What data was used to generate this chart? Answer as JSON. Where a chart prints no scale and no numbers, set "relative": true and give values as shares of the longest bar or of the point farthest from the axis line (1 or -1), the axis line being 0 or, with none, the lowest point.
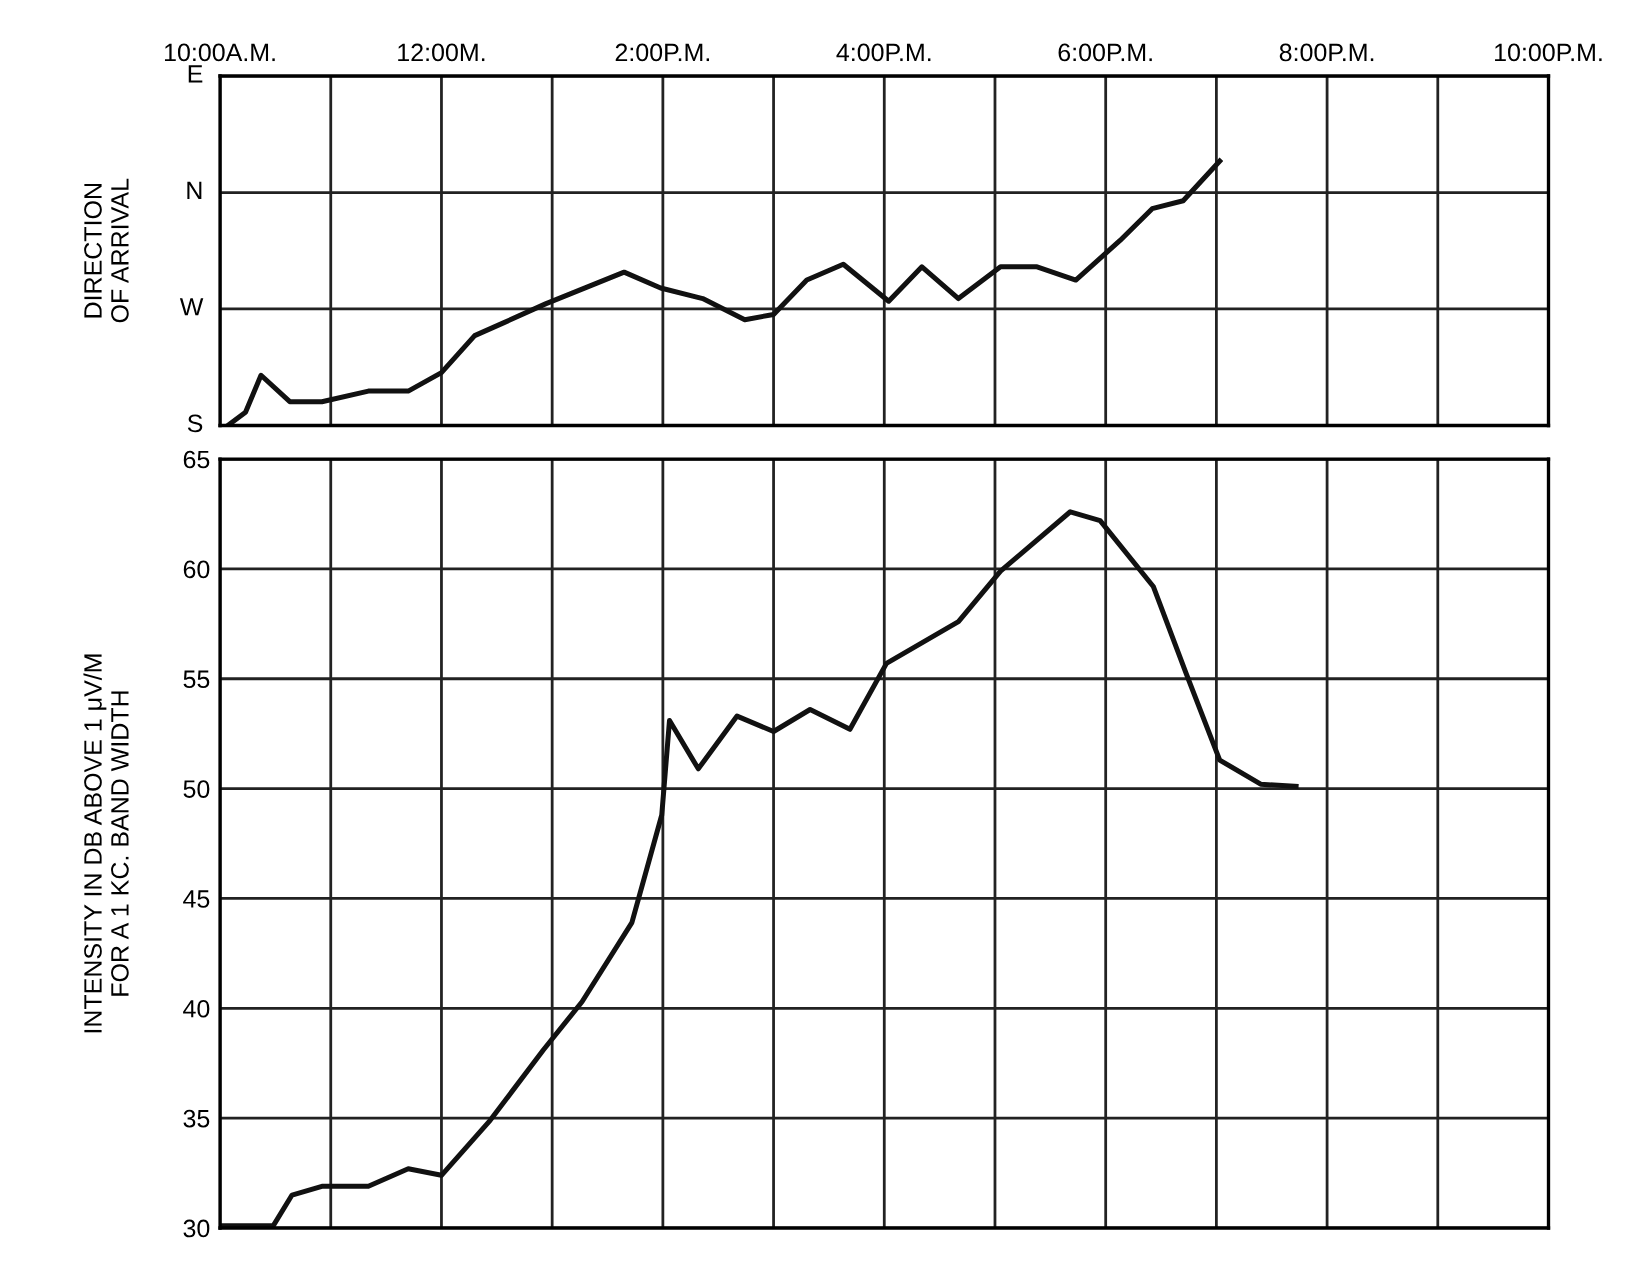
{
  "chart_data": [
    {
      "type": "line",
      "ylabel": "DIRECTION\nOF ARRIVAL",
      "xlim": [
        10,
        22
      ],
      "relative": true,
      "ref_lines": [
        {
          "axis": "y",
          "value": 0,
          "label": "S"
        },
        {
          "axis": "y",
          "value": 0.441,
          "label": "W"
        },
        {
          "axis": "y",
          "value": 0.881,
          "label": "N"
        },
        {
          "axis": "y",
          "value": 1.322,
          "label": "E"
        }
      ],
      "xticks": [
        {
          "value": 10,
          "label": "10:00A.M."
        },
        {
          "value": 11,
          "label": null
        },
        {
          "value": 12,
          "label": "12:00M."
        },
        {
          "value": 13,
          "label": null
        },
        {
          "value": 14,
          "label": "2:00P.M."
        },
        {
          "value": 15,
          "label": null
        },
        {
          "value": 16,
          "label": "4:00P.M."
        },
        {
          "value": 17,
          "label": null
        },
        {
          "value": 18,
          "label": "6:00P.M."
        },
        {
          "value": 19,
          "label": null
        },
        {
          "value": 20,
          "label": "8:00P.M."
        },
        {
          "value": 21,
          "label": null
        },
        {
          "value": 22,
          "label": "10:00P.M."
        }
      ],
      "grid": true,
      "line_style": "solid",
      "series": [
        {
          "color": "#111111",
          "x": [
            10.07,
            10.23,
            10.37,
            10.63,
            10.92,
            11.34,
            11.7,
            12.0,
            12.3,
            12.57,
            12.94,
            13.65,
            13.98,
            14.36,
            14.74,
            15.0,
            15.3,
            15.63,
            16.04,
            16.34,
            16.67,
            17.05,
            17.38,
            17.73,
            18.13,
            18.42,
            18.7,
            19.03
          ],
          "values": [
            0,
            0.05,
            0.19,
            0.09,
            0.09,
            0.13,
            0.13,
            0.2,
            0.34,
            0.39,
            0.46,
            0.58,
            0.52,
            0.48,
            0.4,
            0.42,
            0.55,
            0.61,
            0.47,
            0.6,
            0.48,
            0.6,
            0.6,
            0.55,
            0.7,
            0.82,
            0.85,
            1
          ]
        }
      ]
    },
    {
      "type": "line",
      "ylabel": "INTENSITY IN DB ABOVE 1 μV/M\nFOR A 1 KC. BAND WIDTH",
      "xlim": [
        10,
        22
      ],
      "ylim": [
        30,
        65
      ],
      "xticks": [
        10,
        11,
        12,
        13,
        14,
        15,
        16,
        17,
        18,
        19,
        20,
        21,
        22
      ],
      "yticks": [
        30,
        35,
        40,
        45,
        50,
        55,
        60,
        65
      ],
      "tick_labels": "y",
      "grid": true,
      "line_style": "solid",
      "series": [
        {
          "color": "#111111",
          "x": [
            10.0,
            10.48,
            10.65,
            10.92,
            11.34,
            11.7,
            12.0,
            12.44,
            12.92,
            13.27,
            13.72,
            13.99,
            14.06,
            14.32,
            14.67,
            15.0,
            15.33,
            15.69,
            16.02,
            16.67,
            17.05,
            17.68,
            17.95,
            18.43,
            18.73,
            19.03,
            19.4,
            19.72
          ],
          "values": [
            30.1,
            30.1,
            31.5,
            31.9,
            31.9,
            32.7,
            32.4,
            34.9,
            38.1,
            40.3,
            43.9,
            48.8,
            53.1,
            50.9,
            53.3,
            52.6,
            53.6,
            52.7,
            55.7,
            57.6,
            59.9,
            62.6,
            62.2,
            59.2,
            55.2,
            51.3,
            50.2,
            50.1
          ]
        }
      ]
    }
  ]
}
